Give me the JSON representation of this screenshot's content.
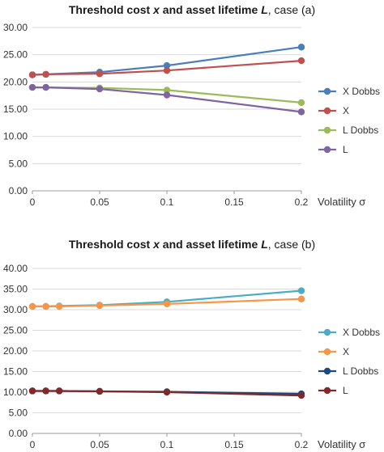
{
  "chart_data": [
    {
      "type": "line",
      "title": {
        "plain": "Threshold cost ",
        "v1": "x",
        "mid": " and asset lifetime ",
        "v2": "L",
        "case": ", case (a)"
      },
      "xlabel": "Volatility σ",
      "ylabel": "",
      "x": [
        0,
        0.01,
        0.05,
        0.1,
        0.2
      ],
      "x_ticks": [
        "0",
        "0.05",
        "0.1",
        "0.15",
        "0.2"
      ],
      "xlim": [
        0,
        0.2
      ],
      "y_ticks": [
        "0.00",
        "5.00",
        "10.00",
        "15.00",
        "20.00",
        "25.00",
        "30.00"
      ],
      "ylim": [
        0,
        30
      ],
      "grid": "horizontal",
      "legend": "right",
      "series": [
        {
          "name": "X Dobbs",
          "color": "#4a7ebb",
          "values": [
            21.3,
            21.4,
            21.8,
            23.0,
            26.4
          ]
        },
        {
          "name": "X",
          "color": "#c0504d",
          "values": [
            21.3,
            21.4,
            21.5,
            22.1,
            23.9
          ]
        },
        {
          "name": "L Dobbs",
          "color": "#9bbb59",
          "values": [
            19.0,
            19.0,
            18.9,
            18.5,
            16.2
          ]
        },
        {
          "name": "L",
          "color": "#8064a2",
          "values": [
            19.0,
            19.0,
            18.7,
            17.6,
            14.5
          ]
        }
      ]
    },
    {
      "type": "line",
      "title": {
        "plain": "Threshold cost ",
        "v1": "x",
        "mid": " and asset lifetime ",
        "v2": "L",
        "case": ", case (b)"
      },
      "xlabel": "Volatility σ",
      "ylabel": "",
      "x": [
        0,
        0.01,
        0.02,
        0.05,
        0.1,
        0.2
      ],
      "x_ticks": [
        "0",
        "0.05",
        "0.1",
        "0.15",
        "0.2"
      ],
      "xlim": [
        0,
        0.2
      ],
      "y_ticks": [
        "0.00",
        "5.00",
        "10.00",
        "15.00",
        "20.00",
        "25.00",
        "30.00",
        "35.00",
        "40.00"
      ],
      "ylim": [
        0,
        40
      ],
      "grid": "horizontal",
      "legend": "right",
      "series": [
        {
          "name": "X Dobbs",
          "color": "#4bacc6",
          "values": [
            30.8,
            30.8,
            30.9,
            31.1,
            31.9,
            34.6
          ]
        },
        {
          "name": "X",
          "color": "#f79646",
          "values": [
            30.8,
            30.8,
            30.8,
            31.0,
            31.4,
            32.6
          ]
        },
        {
          "name": "L Dobbs",
          "color": "#1f497d",
          "values": [
            10.3,
            10.3,
            10.3,
            10.2,
            10.1,
            9.6
          ]
        },
        {
          "name": "L",
          "color": "#7f2a2a",
          "values": [
            10.3,
            10.3,
            10.3,
            10.2,
            10.0,
            9.2
          ]
        }
      ]
    }
  ]
}
